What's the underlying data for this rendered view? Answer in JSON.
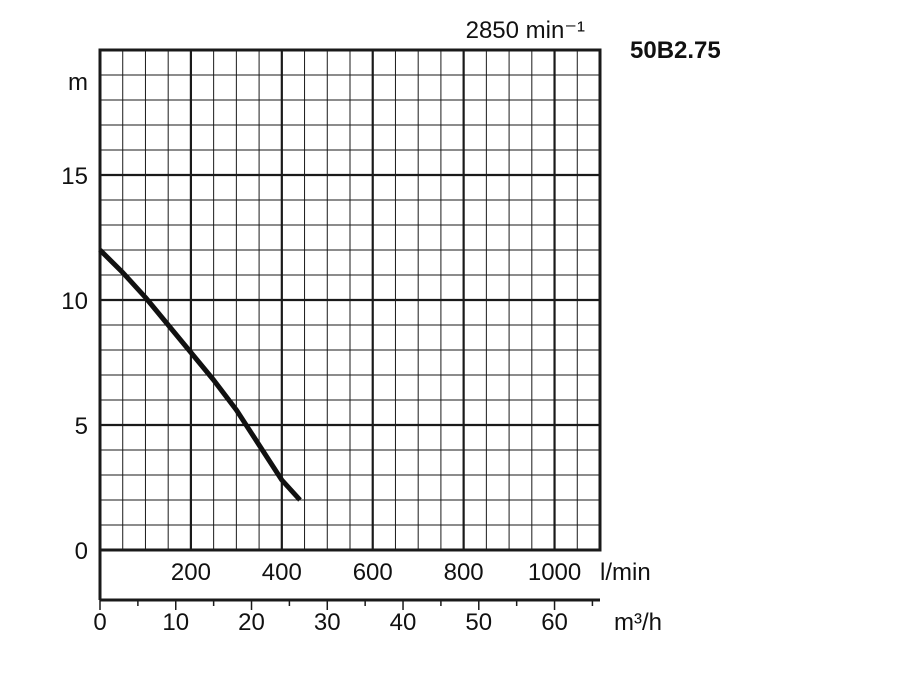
{
  "chart_data": {
    "type": "line",
    "speed_label": "2850 min⁻¹",
    "model_label": "50B2.75",
    "ylabel": "m",
    "y_ticks": [
      0,
      5,
      10,
      15
    ],
    "ylim": [
      0,
      20
    ],
    "x_primary": {
      "unit": "l/min",
      "ticks": [
        200,
        400,
        600,
        800,
        1000
      ],
      "lim": [
        0,
        1100
      ]
    },
    "x_secondary": {
      "unit": "m³/h",
      "ticks": [
        0,
        10,
        20,
        30,
        40,
        50,
        60
      ],
      "lim": [
        0,
        66
      ]
    },
    "grid": true,
    "series": [
      {
        "x": [
          0,
          50,
          100,
          150,
          200,
          250,
          300,
          350,
          400,
          440
        ],
        "values": [
          12.0,
          11.1,
          10.1,
          9.0,
          7.9,
          6.8,
          5.6,
          4.2,
          2.8,
          2.0
        ]
      }
    ]
  },
  "colors": {
    "grid": "#1a1a1a",
    "curve": "#111111",
    "text": "#111111"
  }
}
